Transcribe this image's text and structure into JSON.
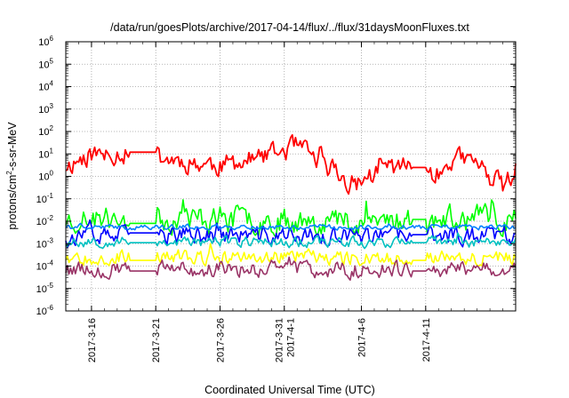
{
  "chart_data": {
    "type": "line",
    "title": "/data/run/goesPlots/archive/2017-04-14/flux/../flux/31daysMoonFluxes.txt",
    "xlabel": "Coordinated Universal Time (UTC)",
    "ylabel": {
      "prefix": "protons/cm",
      "sup": "2",
      "suffix": "-s-sr-MeV"
    },
    "y_scale": "log",
    "ylim": [
      1e-06,
      1000000.0
    ],
    "xlim": [
      "2017-03-14",
      "2017-04-18"
    ],
    "grid": true,
    "y_ticks": [
      {
        "base": "10",
        "exp": "-6",
        "value": 1e-06
      },
      {
        "base": "10",
        "exp": "-5",
        "value": 1e-05
      },
      {
        "base": "10",
        "exp": "-4",
        "value": 0.0001
      },
      {
        "base": "10",
        "exp": "-3",
        "value": 0.001
      },
      {
        "base": "10",
        "exp": "-2",
        "value": 0.01
      },
      {
        "base": "10",
        "exp": "-1",
        "value": 0.1
      },
      {
        "base": "10",
        "exp": "0",
        "value": 1
      },
      {
        "base": "10",
        "exp": "1",
        "value": 10
      },
      {
        "base": "10",
        "exp": "2",
        "value": 100
      },
      {
        "base": "10",
        "exp": "3",
        "value": 1000
      },
      {
        "base": "10",
        "exp": "4",
        "value": 10000
      },
      {
        "base": "10",
        "exp": "5",
        "value": 100000
      },
      {
        "base": "10",
        "exp": "6",
        "value": 1000000
      }
    ],
    "x_ticks": [
      {
        "date": "2017-03-16",
        "label": [
          "2017-3-16"
        ]
      },
      {
        "date": "2017-03-21",
        "label": [
          "2017-3-21"
        ]
      },
      {
        "date": "2017-03-26",
        "label": [
          "2017-3-26"
        ]
      },
      {
        "date": "2017-03-31",
        "label": [
          "2017-3-31",
          "2017-4-1"
        ]
      },
      {
        "date": "2017-04-06",
        "label": [
          "2017-4-6"
        ]
      },
      {
        "date": "2017-04-11",
        "label": [
          "2017-4-11"
        ]
      }
    ],
    "series": [
      {
        "color": "#ff0000",
        "base": [
          [
            "2017-03-14",
            3
          ],
          [
            "2017-03-16",
            10
          ],
          [
            "2017-03-17",
            8
          ],
          [
            "2017-03-18",
            12
          ],
          [
            "2017-03-19",
            10
          ],
          [
            "2017-03-20",
            12
          ],
          [
            "2017-03-22",
            6
          ],
          [
            "2017-03-24",
            4
          ],
          [
            "2017-03-26",
            3
          ],
          [
            "2017-03-28",
            5
          ],
          [
            "2017-03-30",
            8
          ],
          [
            "2017-03-31",
            15
          ],
          [
            "2017-04-01",
            20
          ],
          [
            "2017-04-02",
            8
          ],
          [
            "2017-04-04",
            2
          ],
          [
            "2017-04-05",
            0.4
          ],
          [
            "2017-04-06",
            0.6
          ],
          [
            "2017-04-08",
            3
          ],
          [
            "2017-04-09",
            2.5
          ],
          [
            "2017-04-11",
            2.5
          ],
          [
            "2017-04-12",
            1.2
          ],
          [
            "2017-04-13",
            6
          ],
          [
            "2017-04-15",
            4
          ],
          [
            "2017-04-16",
            1
          ],
          [
            "2017-04-17",
            0.3
          ],
          [
            "2017-04-18",
            2
          ]
        ],
        "noise": 2.6,
        "seed": 11,
        "flat": [
          [
            "2017-03-19",
            "2017-03-21",
            12
          ],
          [
            "2017-04-10",
            "2017-04-11",
            2.5
          ]
        ]
      },
      {
        "color": "#00ff00",
        "base": [
          [
            "2017-03-14",
            0.012
          ],
          [
            "2017-03-24",
            0.013
          ],
          [
            "2017-04-04",
            0.011
          ],
          [
            "2017-04-18",
            0.012
          ]
        ],
        "noise": 3.2,
        "seed": 23,
        "flat": [
          [
            "2017-03-19",
            "2017-03-21",
            0.008
          ],
          [
            "2017-04-10",
            "2017-04-11",
            0.012
          ]
        ]
      },
      {
        "color": "#0000ff",
        "base": [
          [
            "2017-03-14",
            0.002
          ],
          [
            "2017-03-24",
            0.0025
          ],
          [
            "2017-04-04",
            0.002
          ],
          [
            "2017-04-18",
            0.0025
          ]
        ],
        "noise": 2.2,
        "seed": 37,
        "flat": [
          [
            "2017-03-19",
            "2017-03-21",
            0.003
          ],
          [
            "2017-04-10",
            "2017-04-11",
            0.0025
          ]
        ]
      },
      {
        "color": "#0080ff",
        "base": [
          [
            "2017-03-14",
            0.0055
          ],
          [
            "2017-04-18",
            0.0055
          ]
        ],
        "noise": 1.25,
        "seed": 41,
        "flat": []
      },
      {
        "color": "#00c0c0",
        "base": [
          [
            "2017-03-14",
            0.0012
          ],
          [
            "2017-04-18",
            0.0012
          ]
        ],
        "noise": 1.6,
        "seed": 53,
        "flat": [
          [
            "2017-03-19",
            "2017-03-21",
            0.0011
          ],
          [
            "2017-04-10",
            "2017-04-11",
            0.0011
          ]
        ]
      },
      {
        "color": "#ffff00",
        "base": [
          [
            "2017-03-14",
            0.00025
          ],
          [
            "2017-04-18",
            0.00025
          ]
        ],
        "noise": 1.9,
        "seed": 67,
        "flat": [
          [
            "2017-03-19",
            "2017-03-21",
            0.00018
          ],
          [
            "2017-04-10",
            "2017-04-11",
            0.00018
          ]
        ]
      },
      {
        "color": "#993366",
        "base": [
          [
            "2017-03-14",
            7e-05
          ],
          [
            "2017-04-18",
            7e-05
          ]
        ],
        "noise": 2.0,
        "seed": 79,
        "flat": [
          [
            "2017-03-19",
            "2017-03-21",
            6e-05
          ],
          [
            "2017-04-10",
            "2017-04-11",
            6e-05
          ]
        ]
      }
    ]
  }
}
